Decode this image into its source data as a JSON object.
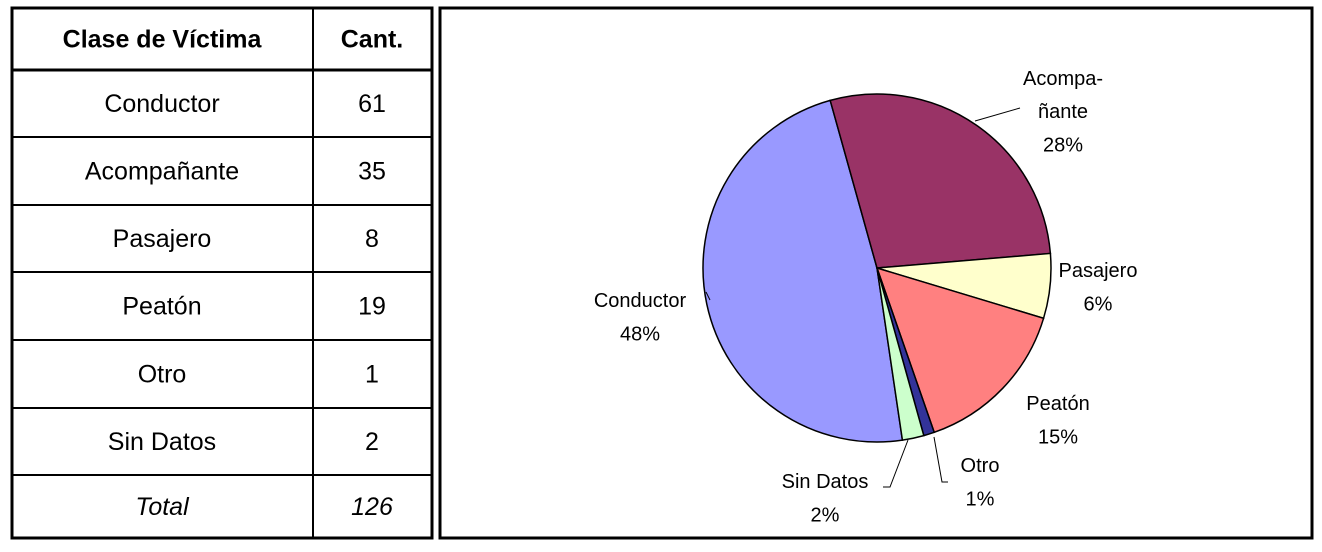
{
  "table": {
    "header": [
      "Clase de Víctima",
      "Cant."
    ],
    "rows": [
      [
        "Conductor",
        61
      ],
      [
        "Acompañante",
        35
      ],
      [
        "Pasajero",
        8
      ],
      [
        "Peatón",
        19
      ],
      [
        "Otro",
        1
      ],
      [
        "Sin Datos",
        2
      ]
    ],
    "total": [
      "Total",
      126
    ]
  },
  "chart_data": {
    "type": "pie",
    "categories": [
      "Conductor",
      "Acompa-\nñante",
      "Pasajero",
      "Peatón",
      "Otro",
      "Sin Datos"
    ],
    "values": [
      48,
      28,
      6,
      15,
      1,
      2
    ],
    "value_labels": [
      "48%",
      "28%",
      "6%",
      "15%",
      "1%",
      "2%"
    ],
    "colors": [
      "#9999ff",
      "#993366",
      "#ffffcc",
      "#ff8080",
      "#333399",
      "#ccffcc"
    ]
  }
}
